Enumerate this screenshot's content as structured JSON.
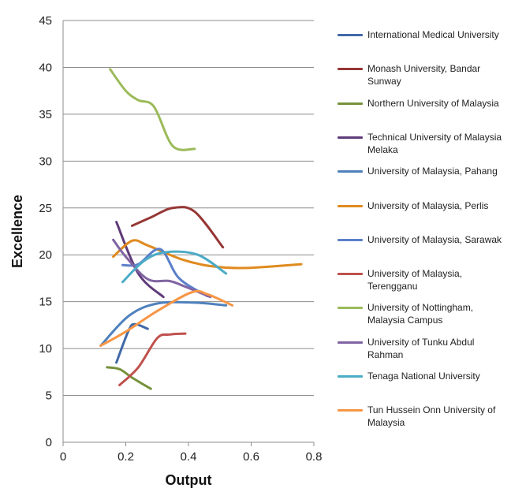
{
  "chart_data": {
    "type": "line",
    "title": "",
    "xlabel": "Output",
    "ylabel": "Excellence",
    "xlim": [
      0,
      0.8
    ],
    "ylim": [
      0,
      45
    ],
    "xticks": [
      "0",
      "0.2",
      "0.4",
      "0.6",
      "0.8"
    ],
    "yticks": [
      "0",
      "5",
      "10",
      "15",
      "20",
      "25",
      "30",
      "35",
      "40",
      "45"
    ],
    "grid": "horizontal",
    "legend_position": "right",
    "series": [
      {
        "name": "International Medical University",
        "color": "#4169A8",
        "points": [
          [
            0.17,
            8.5
          ],
          [
            0.21,
            12.0
          ],
          [
            0.23,
            12.6
          ],
          [
            0.27,
            12.1
          ]
        ]
      },
      {
        "name": "Monash University, Bandar Sunway",
        "color": "#953735",
        "points": [
          [
            0.22,
            23.1
          ],
          [
            0.28,
            24.0
          ],
          [
            0.35,
            25.0
          ],
          [
            0.42,
            24.6
          ],
          [
            0.51,
            20.8
          ]
        ]
      },
      {
        "name": "Northern University of Malaysia",
        "color": "#76923C",
        "points": [
          [
            0.14,
            8.0
          ],
          [
            0.18,
            7.8
          ],
          [
            0.22,
            6.9
          ],
          [
            0.28,
            5.7
          ]
        ]
      },
      {
        "name": "Technical University of Malaysia Melaka",
        "color": "#5F3B7A",
        "points": [
          [
            0.17,
            23.5
          ],
          [
            0.24,
            18.0
          ],
          [
            0.32,
            15.5
          ]
        ]
      },
      {
        "name": "University of Malaysia, Pahang",
        "color": "#4F81BD",
        "points": [
          [
            0.12,
            10.3
          ],
          [
            0.21,
            13.5
          ],
          [
            0.3,
            14.8
          ],
          [
            0.42,
            14.9
          ],
          [
            0.52,
            14.6
          ]
        ]
      },
      {
        "name": "University of Malaysia, Perlis",
        "color": "#E08A1E",
        "points": [
          [
            0.16,
            19.8
          ],
          [
            0.22,
            21.5
          ],
          [
            0.27,
            21.0
          ],
          [
            0.38,
            19.5
          ],
          [
            0.47,
            18.8
          ],
          [
            0.58,
            18.6
          ],
          [
            0.76,
            19.0
          ]
        ]
      },
      {
        "name": "University of Malaysia, Sarawak",
        "color": "#5B7FC9",
        "points": [
          [
            0.19,
            18.9
          ],
          [
            0.24,
            19.0
          ],
          [
            0.31,
            20.6
          ],
          [
            0.37,
            17.5
          ],
          [
            0.46,
            15.6
          ]
        ]
      },
      {
        "name": "University of Malaysia, Terengganu",
        "color": "#C0504D",
        "points": [
          [
            0.18,
            6.1
          ],
          [
            0.24,
            8.0
          ],
          [
            0.3,
            11.1
          ],
          [
            0.34,
            11.5
          ],
          [
            0.39,
            11.6
          ]
        ]
      },
      {
        "name": "University of Nottingham, Malaysia Campus",
        "color": "#9BBB59",
        "points": [
          [
            0.15,
            39.8
          ],
          [
            0.2,
            37.5
          ],
          [
            0.24,
            36.5
          ],
          [
            0.29,
            35.8
          ],
          [
            0.35,
            31.6
          ],
          [
            0.42,
            31.3
          ]
        ]
      },
      {
        "name": "University of Tunku Abdul Rahman",
        "color": "#8064A2",
        "points": [
          [
            0.16,
            21.6
          ],
          [
            0.2,
            19.8
          ],
          [
            0.27,
            17.4
          ],
          [
            0.34,
            17.2
          ],
          [
            0.39,
            16.6
          ],
          [
            0.47,
            15.5
          ]
        ]
      },
      {
        "name": "Tenaga National University",
        "color": "#4BACC6",
        "points": [
          [
            0.19,
            17.1
          ],
          [
            0.26,
            19.4
          ],
          [
            0.33,
            20.3
          ],
          [
            0.43,
            20.0
          ],
          [
            0.52,
            18.0
          ]
        ]
      },
      {
        "name": "Tun Hussein Onn University of Malaysia",
        "color": "#F79646",
        "points": [
          [
            0.12,
            10.3
          ],
          [
            0.2,
            11.8
          ],
          [
            0.3,
            14.0
          ],
          [
            0.41,
            16.0
          ],
          [
            0.46,
            15.8
          ],
          [
            0.54,
            14.6
          ]
        ]
      }
    ]
  }
}
